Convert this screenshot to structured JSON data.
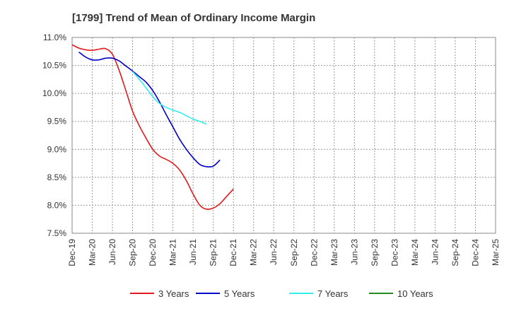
{
  "chart_data": {
    "type": "line",
    "title": "[1799]  Trend of Mean of Ordinary Income Margin",
    "xlabel": "",
    "ylabel": "",
    "x_ticks": [
      "Dec-19",
      "Mar-20",
      "Jun-20",
      "Sep-20",
      "Dec-20",
      "Mar-21",
      "Jun-21",
      "Sep-21",
      "Dec-21",
      "Mar-22",
      "Jun-22",
      "Sep-22",
      "Dec-22",
      "Mar-23",
      "Jun-23",
      "Sep-23",
      "Dec-23",
      "Mar-24",
      "Jun-24",
      "Sep-24",
      "Dec-24",
      "Mar-25"
    ],
    "y_ticks": [
      "7.5%",
      "8.0%",
      "8.5%",
      "9.0%",
      "9.5%",
      "10.0%",
      "10.5%",
      "11.0%"
    ],
    "ylim": [
      7.5,
      11.0
    ],
    "grid": true,
    "legend_position": "bottom",
    "series": [
      {
        "name": "3 Years",
        "color": "#e31a1c",
        "start_index": 0,
        "values": [
          10.87,
          10.81,
          10.78,
          10.77,
          10.79,
          10.8,
          10.7,
          10.41,
          10.05,
          9.68,
          9.42,
          9.2,
          9.0,
          8.88,
          8.82,
          8.75,
          8.63,
          8.44,
          8.2,
          8.0,
          7.93,
          7.95,
          8.03,
          8.16,
          8.29
        ]
      },
      {
        "name": "5 Years",
        "color": "#0000cc",
        "start_index": 1,
        "values": [
          10.74,
          10.65,
          10.6,
          10.6,
          10.63,
          10.63,
          10.58,
          10.49,
          10.4,
          10.3,
          10.2,
          10.05,
          9.85,
          9.62,
          9.4,
          9.18,
          9.0,
          8.85,
          8.73,
          8.69,
          8.7,
          8.81
        ]
      },
      {
        "name": "7 Years",
        "color": "#33eeee",
        "start_index": 9,
        "values": [
          10.39,
          10.25,
          10.1,
          9.94,
          9.82,
          9.75,
          9.7,
          9.66,
          9.6,
          9.54,
          9.5,
          9.45
        ]
      },
      {
        "name": "10 Years",
        "color": "#228b22",
        "start_index": 0,
        "values": []
      }
    ]
  }
}
